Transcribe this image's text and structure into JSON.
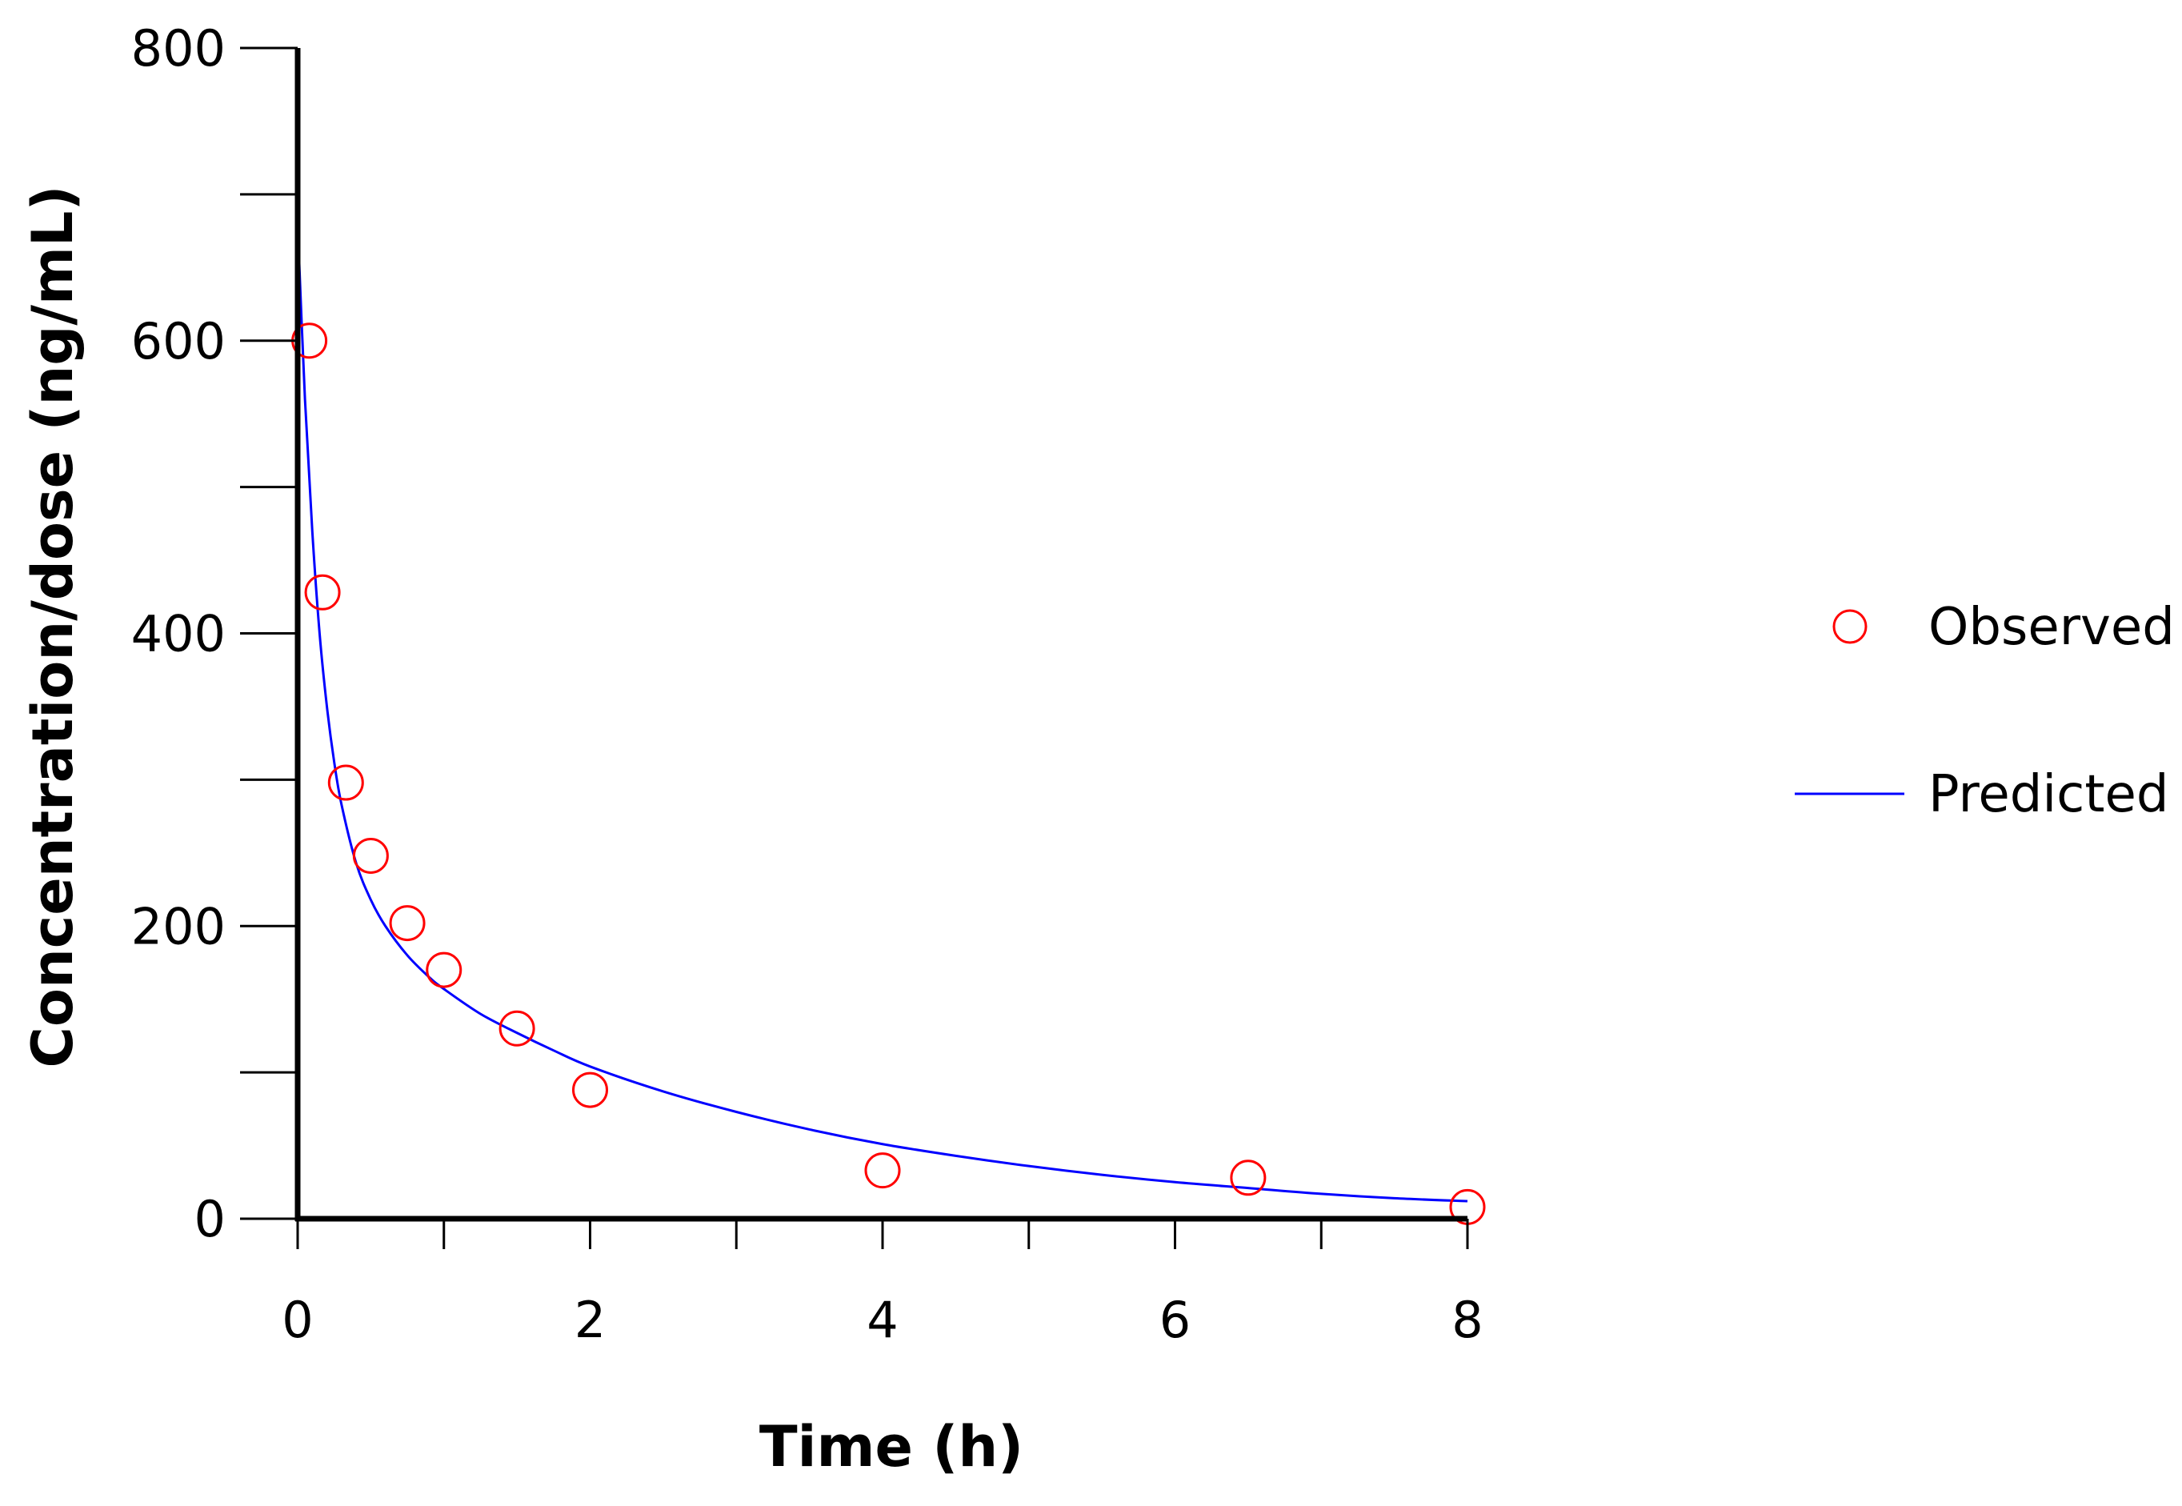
{
  "chart_data": {
    "type": "scatter",
    "title": "",
    "xlabel": "Time (h)",
    "ylabel": "Concentration/dose (ng/mL)",
    "xlim": [
      0,
      8
    ],
    "ylim": [
      0,
      800
    ],
    "x_ticks": [
      0,
      1,
      2,
      3,
      4,
      5,
      6,
      7,
      8
    ],
    "x_tick_labels": [
      "0",
      "",
      "2",
      "",
      "4",
      "",
      "6",
      "",
      "8"
    ],
    "y_ticks": [
      0,
      100,
      200,
      300,
      400,
      500,
      600,
      700,
      800
    ],
    "y_tick_labels": [
      "0",
      "",
      "200",
      "",
      "400",
      "",
      "600",
      "",
      "800"
    ],
    "grid": false,
    "legend_position": "right",
    "series": [
      {
        "name": "Observed",
        "kind": "markers",
        "color": "#ff0000",
        "x": [
          0.08,
          0.17,
          0.33,
          0.5,
          0.75,
          1.0,
          1.5,
          2.0,
          4.0,
          6.5,
          8.0
        ],
        "y": [
          600,
          428,
          298,
          248,
          202,
          170,
          130,
          88,
          33,
          28,
          8
        ]
      },
      {
        "name": "Predicted",
        "kind": "line",
        "color": "#0000ff",
        "x": [
          0,
          0.05,
          0.1,
          0.15,
          0.2,
          0.25,
          0.3,
          0.4,
          0.5,
          0.6,
          0.75,
          0.9,
          1.0,
          1.25,
          1.5,
          1.75,
          2.0,
          2.5,
          3.0,
          3.5,
          4.0,
          4.5,
          5.0,
          5.5,
          6.0,
          6.5,
          7.0,
          7.5,
          8.0
        ],
        "y": [
          680,
          560,
          470,
          400,
          350,
          312,
          283,
          243,
          218,
          200,
          180,
          165,
          157,
          140,
          127,
          115,
          104,
          87,
          73,
          61,
          51,
          43,
          36,
          30,
          25,
          21,
          17,
          14,
          12
        ]
      }
    ]
  }
}
